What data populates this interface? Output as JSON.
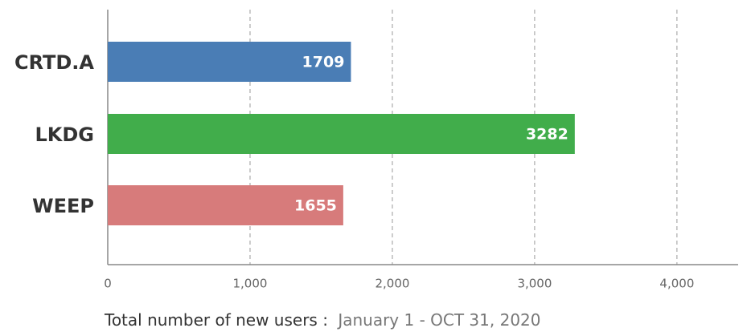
{
  "chart_data": {
    "type": "barh",
    "categories": [
      "CRTD.A",
      "LKDG",
      "WEEP"
    ],
    "values": [
      1709,
      3282,
      1655
    ],
    "colors": [
      "#4a7db5",
      "#41ad4b",
      "#d77b7b"
    ],
    "xlim": [
      0,
      4430
    ],
    "xticks": [
      0,
      {
        "value": 1000,
        "label": "1,000"
      },
      {
        "value": 2000,
        "label": "2,000"
      },
      {
        "value": 3000,
        "label": "3,000"
      },
      {
        "value": 4000,
        "label": "4,000"
      }
    ],
    "grid": true,
    "xlabel": "Total number of new users :",
    "xlabel_note": "January 1 - OCT 31, 2020"
  }
}
